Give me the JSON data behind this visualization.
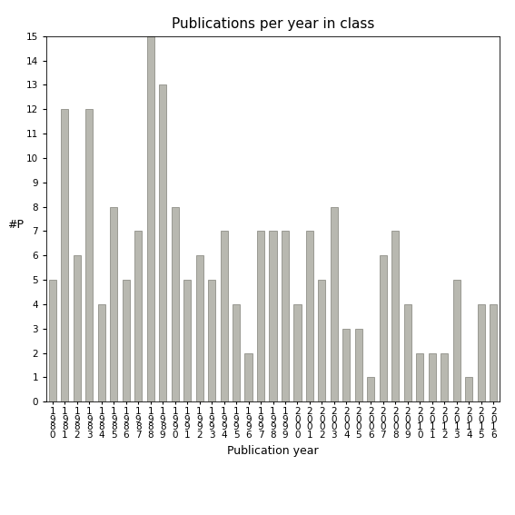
{
  "title": "Publications per year in class",
  "xlabel": "Publication year",
  "ylabel": "#P",
  "years": [
    "1980",
    "1981",
    "1982",
    "1983",
    "1984",
    "1985",
    "1986",
    "1987",
    "1988",
    "1989",
    "1990",
    "1991",
    "1992",
    "1993",
    "1994",
    "1995",
    "1996",
    "1997",
    "1998",
    "1999",
    "2000",
    "2001",
    "2002",
    "2003",
    "2004",
    "2005",
    "2006",
    "2007",
    "2008",
    "2009",
    "2010",
    "2011",
    "2012",
    "2013",
    "2014",
    "2015",
    "2016"
  ],
  "values": [
    5,
    12,
    6,
    12,
    4,
    8,
    5,
    7,
    15,
    13,
    8,
    5,
    6,
    5,
    7,
    4,
    2,
    7,
    7,
    7,
    4,
    7,
    5,
    8,
    3,
    3,
    1,
    6,
    7,
    4,
    2,
    2,
    2,
    5,
    1,
    4,
    4
  ],
  "bar_color": "#b8b8b0",
  "bar_edge_color": "#808078",
  "ylim": [
    0,
    15
  ],
  "yticks": [
    0,
    1,
    2,
    3,
    4,
    5,
    6,
    7,
    8,
    9,
    10,
    11,
    12,
    13,
    14,
    15
  ],
  "background_color": "#ffffff",
  "title_fontsize": 11,
  "axis_label_fontsize": 9,
  "tick_fontsize": 7.5,
  "bar_width": 0.6
}
